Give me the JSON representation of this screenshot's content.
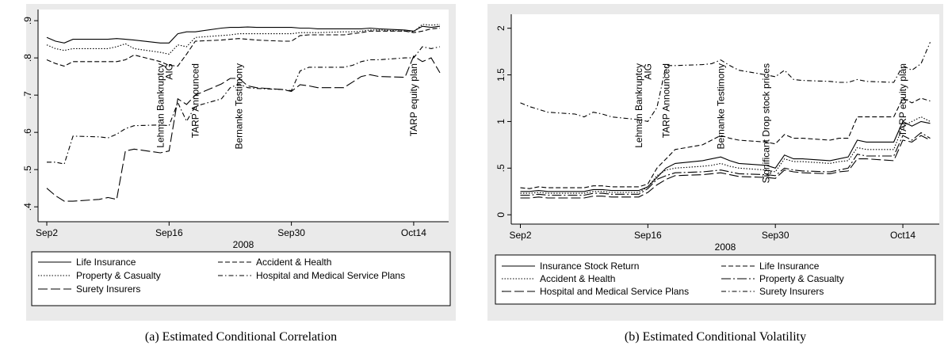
{
  "chart_data": [
    {
      "type": "line",
      "caption": "(a) Estimated Conditional Correlation",
      "xlabel": "2008",
      "x": [
        "2008-09-02",
        "2008-09-03",
        "2008-09-04",
        "2008-09-05",
        "2008-09-08",
        "2008-09-09",
        "2008-09-10",
        "2008-09-11",
        "2008-09-12",
        "2008-09-15",
        "2008-09-16",
        "2008-09-17",
        "2008-09-18",
        "2008-09-19",
        "2008-09-22",
        "2008-09-23",
        "2008-09-24",
        "2008-09-25",
        "2008-09-26",
        "2008-09-29",
        "2008-09-30",
        "2008-10-01",
        "2008-10-02",
        "2008-10-03",
        "2008-10-06",
        "2008-10-07",
        "2008-10-08",
        "2008-10-09",
        "2008-10-10",
        "2008-10-13",
        "2008-10-14",
        "2008-10-15",
        "2008-10-16",
        "2008-10-17"
      ],
      "xlim": [
        "2008-09-01",
        "2008-10-18"
      ],
      "xticks": [
        {
          "value": "2008-09-02",
          "label": "Sep2"
        },
        {
          "value": "2008-09-16",
          "label": "Sep16"
        },
        {
          "value": "2008-09-30",
          "label": "Sep30"
        },
        {
          "value": "2008-10-14",
          "label": "Oct14"
        }
      ],
      "ylim": [
        0.36,
        0.93
      ],
      "yticks": [
        {
          "value": 0.4,
          "label": ".4"
        },
        {
          "value": 0.5,
          "label": ".5"
        },
        {
          "value": 0.6,
          "label": ".6"
        },
        {
          "value": 0.7,
          "label": ".7"
        },
        {
          "value": 0.8,
          "label": ".8"
        },
        {
          "value": 0.9,
          "label": ".9"
        }
      ],
      "annotations": [
        {
          "text": "Lehman Bankruptcy",
          "x": "2008-09-15"
        },
        {
          "text": "AIG",
          "x": "2008-09-16"
        },
        {
          "text": "TARP Announced",
          "x": "2008-09-19"
        },
        {
          "text": "Bernanke Testimony",
          "x": "2008-09-24"
        },
        {
          "text": "TARP equity plan",
          "x": "2008-10-14"
        }
      ],
      "series": [
        {
          "name": "Life Insurance",
          "color": "#000000",
          "style": "solid",
          "values": [
            0.855,
            0.845,
            0.84,
            0.85,
            0.85,
            0.85,
            0.852,
            0.85,
            0.848,
            0.84,
            0.84,
            0.865,
            0.87,
            0.87,
            0.88,
            0.882,
            0.882,
            0.883,
            0.882,
            0.882,
            0.882,
            0.88,
            0.88,
            0.878,
            0.878,
            0.878,
            0.878,
            0.88,
            0.878,
            0.875,
            0.872,
            0.885,
            0.882,
            0.885
          ]
        },
        {
          "name": "Accident & Health",
          "color": "#000000",
          "style": "dashed",
          "values": [
            0.795,
            0.785,
            0.778,
            0.79,
            0.79,
            0.79,
            0.79,
            0.795,
            0.808,
            0.79,
            0.78,
            0.778,
            0.81,
            0.845,
            0.848,
            0.85,
            0.852,
            0.85,
            0.848,
            0.845,
            0.845,
            0.86,
            0.862,
            0.862,
            0.862,
            0.865,
            0.868,
            0.872,
            0.872,
            0.872,
            0.868,
            0.872,
            0.878,
            0.88
          ]
        },
        {
          "name": "Property & Casualty",
          "color": "#000000",
          "style": "dotted",
          "values": [
            0.835,
            0.825,
            0.82,
            0.825,
            0.825,
            0.825,
            0.83,
            0.838,
            0.825,
            0.815,
            0.81,
            0.835,
            0.83,
            0.855,
            0.86,
            0.862,
            0.865,
            0.865,
            0.865,
            0.865,
            0.865,
            0.868,
            0.868,
            0.868,
            0.87,
            0.87,
            0.872,
            0.875,
            0.875,
            0.872,
            0.87,
            0.89,
            0.888,
            0.89
          ]
        },
        {
          "name": "Hospital and Medical Service Plans",
          "color": "#000000",
          "style": "dashdot",
          "values": [
            0.52,
            0.52,
            0.515,
            0.59,
            0.588,
            0.585,
            0.595,
            0.61,
            0.618,
            0.62,
            0.618,
            0.68,
            0.63,
            0.67,
            0.69,
            0.72,
            0.73,
            0.72,
            0.718,
            0.715,
            0.712,
            0.765,
            0.775,
            0.775,
            0.775,
            0.78,
            0.79,
            0.795,
            0.795,
            0.8,
            0.8,
            0.83,
            0.825,
            0.83
          ]
        },
        {
          "name": "Surety Insurers",
          "color": "#000000",
          "style": "longdash",
          "values": [
            0.45,
            0.43,
            0.415,
            0.415,
            0.42,
            0.425,
            0.42,
            0.55,
            0.555,
            0.545,
            0.55,
            0.69,
            0.675,
            0.7,
            0.73,
            0.745,
            0.745,
            0.725,
            0.72,
            0.715,
            0.71,
            0.728,
            0.725,
            0.72,
            0.72,
            0.735,
            0.75,
            0.755,
            0.75,
            0.748,
            0.805,
            0.79,
            0.8,
            0.76
          ]
        }
      ]
    },
    {
      "type": "line",
      "caption": "(b) Estimated Conditional Volatility",
      "xlabel": "2008",
      "x": [
        "2008-09-02",
        "2008-09-03",
        "2008-09-04",
        "2008-09-05",
        "2008-09-08",
        "2008-09-09",
        "2008-09-10",
        "2008-09-11",
        "2008-09-12",
        "2008-09-15",
        "2008-09-16",
        "2008-09-17",
        "2008-09-18",
        "2008-09-19",
        "2008-09-22",
        "2008-09-23",
        "2008-09-24",
        "2008-09-25",
        "2008-09-26",
        "2008-09-29",
        "2008-09-30",
        "2008-10-01",
        "2008-10-02",
        "2008-10-03",
        "2008-10-06",
        "2008-10-07",
        "2008-10-08",
        "2008-10-09",
        "2008-10-10",
        "2008-10-13",
        "2008-10-14",
        "2008-10-15",
        "2008-10-16",
        "2008-10-17"
      ],
      "xlim": [
        "2008-09-01",
        "2008-10-18"
      ],
      "xticks": [
        {
          "value": "2008-09-02",
          "label": "Sep2"
        },
        {
          "value": "2008-09-16",
          "label": "Sep16"
        },
        {
          "value": "2008-09-30",
          "label": "Sep30"
        },
        {
          "value": "2008-10-14",
          "label": "Oct14"
        }
      ],
      "ylim": [
        -0.1,
        2.15
      ],
      "yticks": [
        0,
        {
          "value": 0.5,
          "label": ".5"
        },
        1,
        1.5,
        2
      ],
      "annotations": [
        {
          "text": "Lehman Bankruptcy",
          "x": "2008-09-15"
        },
        {
          "text": "AIG",
          "x": "2008-09-16"
        },
        {
          "text": "TARP Announced",
          "x": "2008-09-18"
        },
        {
          "text": "Bernanke Testimony",
          "x": "2008-09-24"
        },
        {
          "text": "Significant Drop stock prices",
          "x": "2008-09-29"
        },
        {
          "text": "TARP equity plan",
          "x": "2008-10-14"
        }
      ],
      "series": [
        {
          "name": "Insurance Stock Return",
          "color": "#000000",
          "style": "solid",
          "values": [
            0.25,
            0.25,
            0.26,
            0.25,
            0.25,
            0.25,
            0.27,
            0.27,
            0.26,
            0.26,
            0.3,
            0.4,
            0.5,
            0.55,
            0.58,
            0.6,
            0.62,
            0.58,
            0.55,
            0.53,
            0.5,
            0.64,
            0.6,
            0.6,
            0.58,
            0.6,
            0.62,
            0.8,
            0.78,
            0.78,
            1.0,
            0.95,
            1.0,
            0.98
          ]
        },
        {
          "name": "Life Insurance",
          "color": "#000000",
          "style": "dashed",
          "values": [
            0.29,
            0.28,
            0.3,
            0.29,
            0.29,
            0.29,
            0.31,
            0.31,
            0.3,
            0.3,
            0.33,
            0.5,
            0.6,
            0.7,
            0.75,
            0.8,
            0.85,
            0.82,
            0.8,
            0.78,
            0.76,
            0.86,
            0.82,
            0.82,
            0.8,
            0.82,
            0.82,
            1.05,
            1.05,
            1.05,
            1.25,
            1.2,
            1.25,
            1.22
          ]
        },
        {
          "name": "Accident & Health",
          "color": "#000000",
          "style": "dotted",
          "values": [
            0.23,
            0.23,
            0.24,
            0.23,
            0.23,
            0.23,
            0.25,
            0.25,
            0.24,
            0.24,
            0.3,
            0.42,
            0.48,
            0.5,
            0.52,
            0.53,
            0.55,
            0.52,
            0.5,
            0.48,
            0.46,
            0.6,
            0.57,
            0.57,
            0.55,
            0.57,
            0.58,
            0.72,
            0.7,
            0.7,
            0.95,
            1.0,
            1.05,
            1.0
          ]
        },
        {
          "name": "Property & Casualty",
          "color": "#000000",
          "style": "longdashdot",
          "values": [
            0.21,
            0.21,
            0.22,
            0.21,
            0.21,
            0.21,
            0.23,
            0.23,
            0.22,
            0.22,
            0.28,
            0.38,
            0.42,
            0.45,
            0.46,
            0.47,
            0.48,
            0.46,
            0.44,
            0.43,
            0.42,
            0.5,
            0.48,
            0.47,
            0.46,
            0.48,
            0.5,
            0.65,
            0.63,
            0.63,
            0.85,
            0.8,
            0.88,
            0.82
          ]
        },
        {
          "name": "Hospital and Medical Service Plans",
          "color": "#000000",
          "style": "longdash",
          "values": [
            0.18,
            0.18,
            0.19,
            0.18,
            0.18,
            0.18,
            0.2,
            0.2,
            0.19,
            0.19,
            0.24,
            0.32,
            0.38,
            0.42,
            0.43,
            0.44,
            0.45,
            0.43,
            0.41,
            0.4,
            0.39,
            0.48,
            0.46,
            0.45,
            0.44,
            0.46,
            0.47,
            0.6,
            0.6,
            0.58,
            0.8,
            0.78,
            0.85,
            0.8
          ]
        },
        {
          "name": "Surety Insurers",
          "color": "#000000",
          "style": "dashdot",
          "values": [
            1.2,
            1.16,
            1.13,
            1.1,
            1.08,
            1.05,
            1.1,
            1.08,
            1.05,
            1.02,
            1.0,
            1.15,
            1.6,
            1.6,
            1.61,
            1.62,
            1.66,
            1.6,
            1.55,
            1.5,
            1.48,
            1.55,
            1.45,
            1.44,
            1.43,
            1.42,
            1.42,
            1.45,
            1.43,
            1.42,
            1.6,
            1.55,
            1.62,
            1.85
          ]
        }
      ]
    }
  ]
}
